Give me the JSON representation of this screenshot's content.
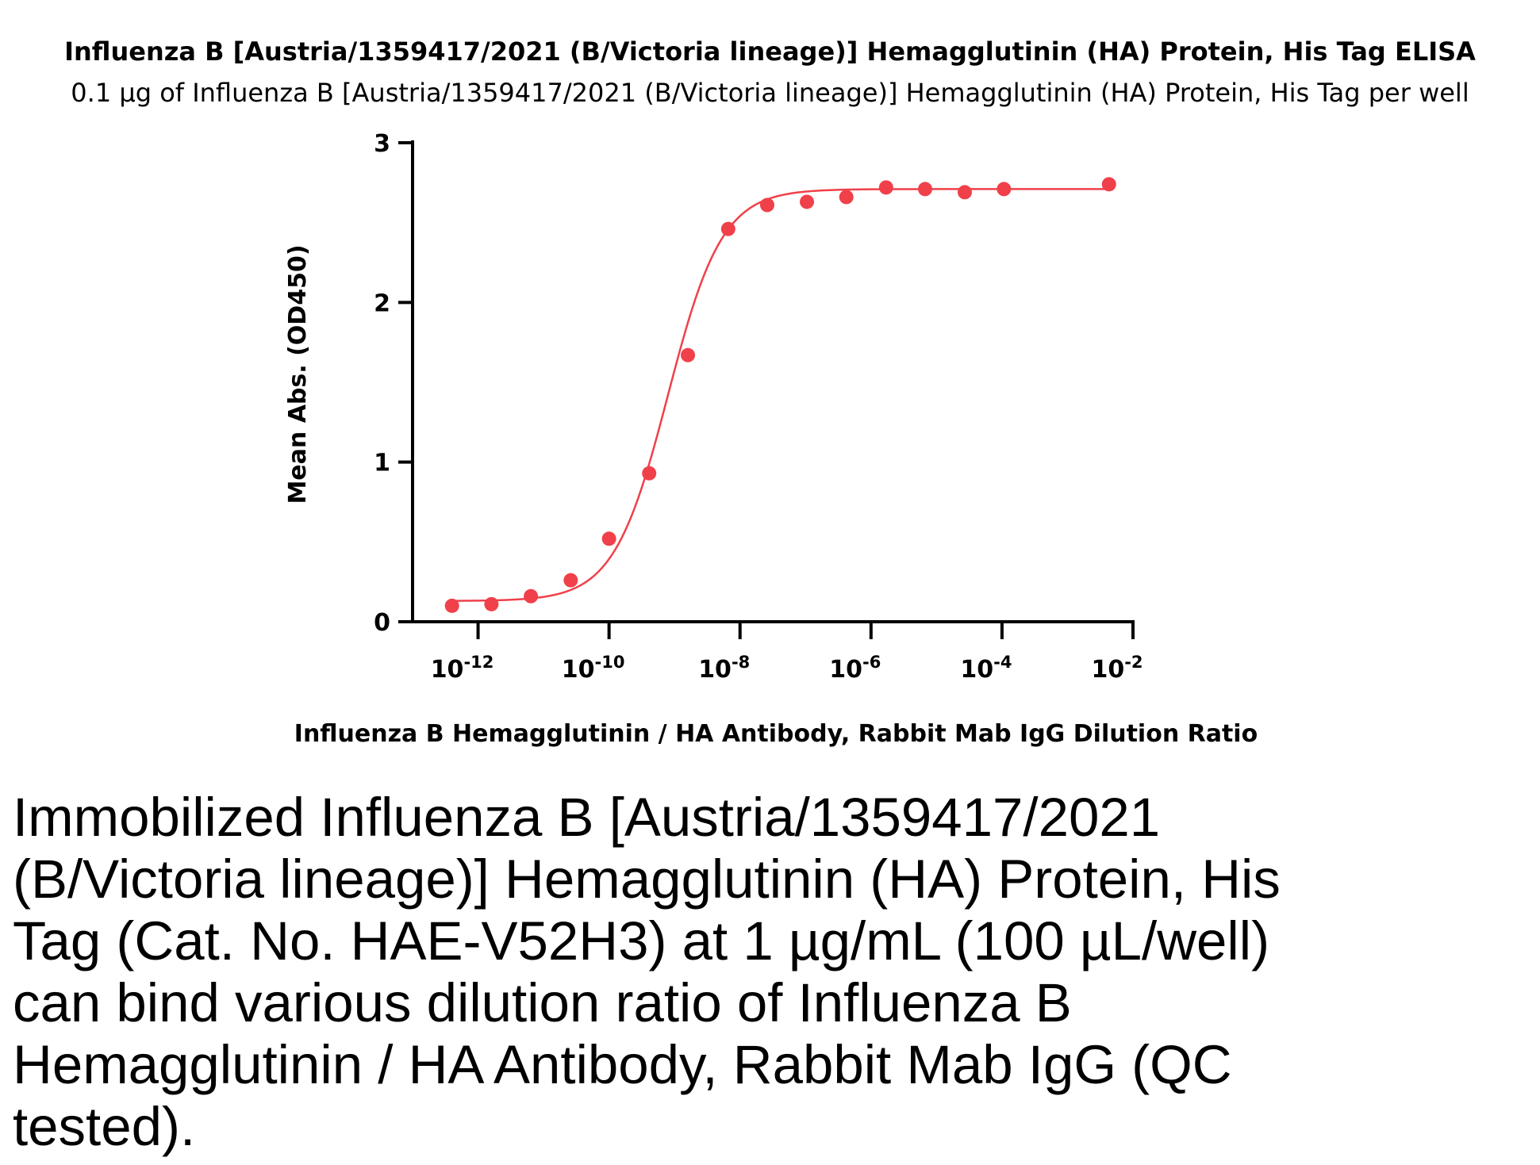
{
  "page": {
    "title": "Influenza B [Austria/1359417/2021 (B/Victoria lineage)] Hemagglutinin (HA) Protein, His Tag ELISA",
    "subtitle": "0.1 µg of Influenza B [Austria/1359417/2021 (B/Victoria lineage)] Hemagglutinin (HA) Protein, His Tag per well",
    "caption": "Immobilized Influenza B [Austria/1359417/2021 (B/Victoria lineage)] Hemagglutinin (HA) Protein, His Tag (Cat. No. HAE-V52H3) at 1 µg/mL (100 µL/well) can bind various dilution ratio of Influenza B Hemagglutinin / HA Antibody, Rabbit Mab IgG (QC tested)."
  },
  "chart_data": {
    "type": "scatter",
    "xlabel": "Influenza B Hemagglutinin / HA Antibody, Rabbit Mab IgG Dilution Ratio",
    "ylabel": "Mean Abs. (OD450)",
    "xscale": "log",
    "xlim": [
      1e-13,
      0.01
    ],
    "ylim": [
      0,
      3
    ],
    "x_ticks": [
      {
        "value": 1e-12,
        "base": "10",
        "exp": "-12"
      },
      {
        "value": 1e-10,
        "base": "10",
        "exp": "-10"
      },
      {
        "value": 1e-08,
        "base": "10",
        "exp": "-8"
      },
      {
        "value": 1e-06,
        "base": "10",
        "exp": "-6"
      },
      {
        "value": 0.0001,
        "base": "10",
        "exp": "-4"
      },
      {
        "value": 0.01,
        "base": "10",
        "exp": "-2"
      }
    ],
    "y_ticks": [
      0,
      1,
      2,
      3
    ],
    "grid": false,
    "color": "#f0404a",
    "series": [
      {
        "x": [
          4e-13,
          1.6e-12,
          6.4e-12,
          2.6e-11,
          1e-10,
          4.1e-10,
          1.6e-09,
          6.6e-09,
          2.6e-08,
          1.05e-07,
          4.2e-07,
          1.7e-06,
          6.7e-06,
          2.7e-05,
          0.000107,
          0.0043
        ],
        "y": [
          0.1,
          0.11,
          0.16,
          0.26,
          0.52,
          0.93,
          1.67,
          2.46,
          2.61,
          2.63,
          2.66,
          2.72,
          2.71,
          2.69,
          2.71,
          2.74
        ]
      }
    ],
    "fit": {
      "model": "4PL",
      "bottom": 0.13,
      "top": 2.71,
      "log_ec50": -9.1,
      "hill": 1.05
    }
  }
}
